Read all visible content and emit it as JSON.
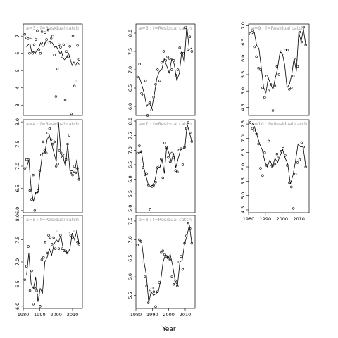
{
  "figure": {
    "x_axis_title": "Year"
  },
  "chart_data": {
    "type": "line",
    "xlabel": "Year",
    "ylabel": "",
    "xlim": [
      1980,
      2016
    ],
    "x_ticks": [
      1980,
      1990,
      2000,
      2010
    ],
    "x_tick_labels": [
      "1980",
      "1990",
      "2000",
      "2010"
    ],
    "years": [
      1981,
      1982,
      1983,
      1984,
      1985,
      1986,
      1987,
      1988,
      1989,
      1990,
      1991,
      1992,
      1993,
      1994,
      1995,
      1996,
      1997,
      1998,
      1999,
      2000,
      2001,
      2002,
      2003,
      2004,
      2005,
      2006,
      2007,
      2008,
      2009,
      2010,
      2011,
      2012,
      2013,
      2014
    ],
    "panels": [
      {
        "strip": "a=3 : f=Residual catch",
        "col": 0,
        "row": 0,
        "ylim": [
          2.4,
          7.7
        ],
        "yticks": [
          3,
          4,
          5,
          6,
          7
        ],
        "points": [
          7.1,
          6.9,
          6.85,
          6.0,
          6.9,
          6.0,
          6.5,
          6.8,
          7.3,
          6.2,
          6.0,
          7.25,
          6.6,
          7.2,
          6.8,
          7.35,
          6.6,
          6.85,
          7.0,
          5.9,
          3.5,
          5.1,
          6.5,
          6.35,
          5.8,
          6.5,
          3.3,
          6.1,
          5.8,
          6.4,
          2.5,
          7.0,
          4.1,
          4.4,
          6.45,
          5.65
        ],
        "line": [
          6.35,
          6.5,
          6.55,
          6.05,
          6.1,
          6.0,
          6.2,
          6.3,
          6.6,
          6.4,
          6.4,
          6.7,
          6.65,
          6.7,
          6.7,
          6.55,
          6.35,
          6.4,
          6.2,
          6.0,
          6.1,
          5.7,
          5.6,
          5.8,
          6.0,
          5.65,
          5.3,
          5.5,
          5.3,
          5.5,
          5.35
        ]
      },
      {
        "strip": "a=4 : f=Residual catch",
        "col": 0,
        "row": 1,
        "ylim": [
          5.95,
          8.05
        ],
        "yticks": [
          6.0,
          6.5,
          7.0,
          7.5,
          8.0
        ],
        "points": [
          6.95,
          7.15,
          7.15,
          6.45,
          6.25,
          6.8,
          6.0,
          6.4,
          6.45,
          6.9,
          7.25,
          7.55,
          7.35,
          7.3,
          7.75,
          7.85,
          7.6,
          7.5,
          7.55,
          7.0,
          7.05,
          7.35,
          7.3,
          7.2,
          7.25,
          7.15,
          7.5,
          7.7,
          6.85,
          6.8,
          7.0,
          6.85,
          6.95,
          6.7
        ],
        "line": [
          6.95,
          7.15,
          6.5,
          6.2,
          6.4,
          6.4,
          6.9,
          7.3,
          7.3,
          7.6,
          7.7,
          7.5,
          7.3,
          7.1,
          8.0,
          7.3,
          7.2,
          7.0,
          7.5,
          6.9,
          6.9,
          6.85,
          7.15,
          6.7
        ]
      },
      {
        "strip": "a=5 : f=Residual catch",
        "col": 0,
        "row": 2,
        "ylim": [
          5.95,
          8.05
        ],
        "yticks": [
          6.0,
          6.5,
          7.0,
          7.5,
          8.0
        ],
        "points": [
          6.6,
          6.9,
          7.35,
          6.35,
          6.8,
          6.05,
          6.4,
          6.35,
          6.25,
          6.0,
          7.05,
          7.1,
          7.45,
          7.2,
          7.6,
          7.55,
          7.4,
          7.55,
          7.3,
          7.7,
          7.3,
          7.6,
          7.3,
          7.25,
          7.25,
          7.2,
          7.65,
          7.6,
          7.55,
          7.7,
          7.7,
          7.45,
          7.4
        ],
        "line": [
          6.7,
          7.2,
          6.5,
          6.4,
          6.65,
          6.1,
          6.4,
          6.3,
          7.0,
          7.1,
          7.3,
          7.15,
          7.4,
          7.5,
          7.45,
          7.6,
          7.3,
          7.25,
          7.2,
          7.3,
          7.65,
          7.5,
          7.7,
          7.4
        ]
      },
      {
        "strip": "a=6 : f=Residual catch",
        "col": 1,
        "row": 0,
        "ylim": [
          5.75,
          8.25
        ],
        "yticks": [
          6.0,
          6.5,
          7.0,
          7.5,
          8.0
        ],
        "points": [
          6.8,
          7.15,
          6.35,
          6.3,
          6.7,
          5.75,
          6.1,
          5.9,
          6.25,
          6.6,
          7.0,
          6.7,
          7.2,
          7.5,
          7.25,
          7.35,
          7.3,
          7.0,
          7.25,
          6.85,
          7.0,
          7.6,
          7.45,
          7.45,
          8.15,
          7.55,
          7.9,
          7.5
        ],
        "line": [
          6.8,
          6.6,
          6.35,
          6.0,
          6.1,
          5.95,
          6.3,
          6.75,
          6.95,
          7.0,
          7.3,
          7.1,
          6.9,
          7.3,
          7.15,
          6.7,
          6.9,
          7.5,
          7.2,
          8.2,
          7.55,
          7.6
        ]
      },
      {
        "strip": "a=7 : f=Residual catch",
        "col": 1,
        "row": 1,
        "ylim": [
          4.85,
          8.05
        ],
        "yticks": [
          5.0,
          5.5,
          6.0,
          6.5,
          7.0,
          7.5,
          8.0
        ],
        "points": [
          6.9,
          7.15,
          6.95,
          6.4,
          6.15,
          6.2,
          5.8,
          4.95,
          5.75,
          5.8,
          5.9,
          6.4,
          6.45,
          6.7,
          6.05,
          7.25,
          7.1,
          6.75,
          6.6,
          6.9,
          6.75,
          6.3,
          6.25,
          7.0,
          7.05,
          6.5,
          7.1,
          7.75,
          7.95,
          7.6,
          7.3
        ],
        "line": [
          6.9,
          6.95,
          6.4,
          6.1,
          5.8,
          5.75,
          5.8,
          6.0,
          6.4,
          6.4,
          6.7,
          6.2,
          7.1,
          6.9,
          6.6,
          6.9,
          6.4,
          6.7,
          7.0,
          7.05,
          7.1,
          7.9,
          7.6,
          7.3
        ]
      },
      {
        "strip": "a=8 : f=Residual catch",
        "col": 1,
        "row": 2,
        "ylim": [
          5.15,
          7.65
        ],
        "yticks": [
          5.5,
          6.0,
          6.5,
          7.0,
          7.5
        ],
        "points": [
          6.85,
          7.0,
          6.95,
          6.4,
          6.0,
          5.75,
          5.3,
          5.65,
          5.7,
          5.6,
          5.2,
          5.6,
          5.85,
          6.65,
          6.7,
          6.6,
          6.55,
          6.5,
          6.45,
          6.0,
          5.8,
          5.9,
          5.75,
          6.4,
          6.55,
          6.2,
          6.9,
          7.1,
          7.45,
          7.3,
          6.9
        ],
        "line": [
          6.95,
          6.95,
          6.4,
          6.05,
          5.3,
          5.6,
          5.5,
          5.55,
          5.6,
          5.9,
          6.4,
          6.6,
          6.5,
          6.6,
          6.3,
          5.9,
          5.75,
          6.4,
          6.45,
          6.9,
          7.1,
          7.4,
          6.9
        ]
      },
      {
        "strip": "a=9 : f=Residual catch",
        "col": 2,
        "row": 0,
        "ylim": [
          4.25,
          7.05
        ],
        "yticks": [
          4.5,
          5.0,
          5.5,
          6.0,
          6.5,
          7.0
        ],
        "points": [
          6.75,
          6.85,
          6.35,
          6.05,
          5.7,
          5.65,
          5.1,
          4.8,
          5.45,
          5.0,
          5.2,
          4.4,
          5.15,
          5.75,
          5.5,
          6.2,
          6.1,
          6.25,
          6.25,
          5.05,
          5.1,
          5.45,
          5.95,
          5.75,
          6.8,
          6.5,
          6.95,
          6.4
        ],
        "line": [
          6.75,
          6.8,
          6.4,
          6.3,
          5.7,
          5.1,
          4.95,
          5.4,
          5.2,
          5.05,
          5.4,
          5.7,
          6.2,
          6.15,
          5.8,
          5.1,
          5.2,
          5.5,
          6.0,
          5.6,
          6.8,
          6.5,
          6.9,
          6.4
        ]
      },
      {
        "strip": "a=10 : f=Residual catch",
        "col": 2,
        "row": 1,
        "ylim": [
          4.4,
          7.65
        ],
        "yticks": [
          4.5,
          5.0,
          5.5,
          6.0,
          6.5,
          7.0,
          7.5
        ],
        "points": [
          7.55,
          7.35,
          7.25,
          7.15,
          6.8,
          5.95,
          5.7,
          6.5,
          6.05,
          6.9,
          6.0,
          6.05,
          6.1,
          6.45,
          6.35,
          6.55,
          6.65,
          6.4,
          6.05,
          5.45,
          5.3,
          4.55,
          5.75,
          6.15,
          6.25,
          6.85,
          6.7,
          6.0
        ],
        "line": [
          7.55,
          7.4,
          7.1,
          6.8,
          6.6,
          6.2,
          6.0,
          6.25,
          6.0,
          6.3,
          6.15,
          6.4,
          6.6,
          6.3,
          6.1,
          5.4,
          5.7,
          6.2,
          6.8,
          6.7,
          6.7,
          6.0
        ]
      }
    ]
  }
}
